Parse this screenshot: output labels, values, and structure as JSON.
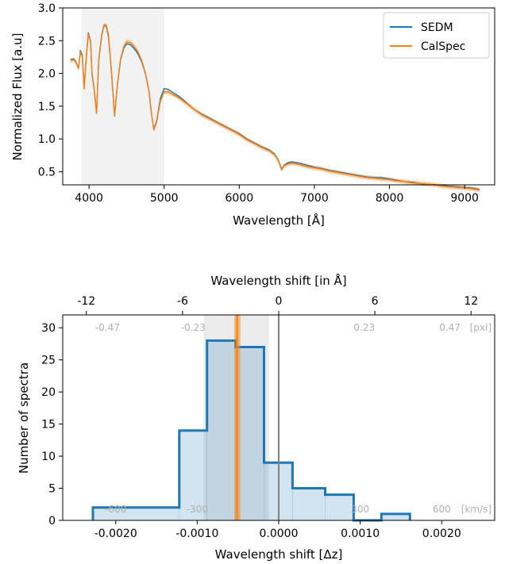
{
  "chart_data": [
    {
      "type": "line",
      "xlabel": "Wavelength [Å]",
      "ylabel": "Normalized Flux [a.u]",
      "xlim": [
        3650,
        9400
      ],
      "ylim": [
        0.3,
        3.0
      ],
      "xticks": [
        "4000",
        "5000",
        "6000",
        "7000",
        "8000",
        "9000"
      ],
      "yticks": [
        "0.5",
        "1.0",
        "1.5",
        "2.0",
        "2.5",
        "3.0"
      ],
      "grid": false,
      "legend_position": "top-right",
      "shaded_region": [
        3900,
        5000
      ],
      "series": [
        {
          "name": "SEDM",
          "color": "#1f77b4",
          "points": [
            [
              3750,
              2.21
            ],
            [
              3800,
              2.22
            ],
            [
              3830,
              2.17
            ],
            [
              3860,
              2.08
            ],
            [
              3885,
              2.35
            ],
            [
              3910,
              2.28
            ],
            [
              3935,
              1.78
            ],
            [
              3960,
              2.2
            ],
            [
              3990,
              2.62
            ],
            [
              4020,
              2.5
            ],
            [
              4040,
              2.0
            ],
            [
              4070,
              1.75
            ],
            [
              4100,
              1.4
            ],
            [
              4130,
              2.22
            ],
            [
              4170,
              2.6
            ],
            [
              4200,
              2.74
            ],
            [
              4230,
              2.72
            ],
            [
              4260,
              2.55
            ],
            [
              4300,
              2.0
            ],
            [
              4340,
              1.35
            ],
            [
              4380,
              1.85
            ],
            [
              4420,
              2.2
            ],
            [
              4460,
              2.38
            ],
            [
              4500,
              2.45
            ],
            [
              4550,
              2.44
            ],
            [
              4600,
              2.38
            ],
            [
              4650,
              2.3
            ],
            [
              4700,
              2.18
            ],
            [
              4750,
              2.0
            ],
            [
              4800,
              1.72
            ],
            [
              4830,
              1.4
            ],
            [
              4862,
              1.15
            ],
            [
              4900,
              1.28
            ],
            [
              4950,
              1.62
            ],
            [
              5000,
              1.77
            ],
            [
              5050,
              1.76
            ],
            [
              5100,
              1.72
            ],
            [
              5200,
              1.65
            ],
            [
              5300,
              1.55
            ],
            [
              5400,
              1.45
            ],
            [
              5500,
              1.38
            ],
            [
              5600,
              1.32
            ],
            [
              5700,
              1.26
            ],
            [
              5800,
              1.2
            ],
            [
              5900,
              1.14
            ],
            [
              6000,
              1.08
            ],
            [
              6100,
              1.0
            ],
            [
              6200,
              0.94
            ],
            [
              6300,
              0.88
            ],
            [
              6400,
              0.83
            ],
            [
              6470,
              0.77
            ],
            [
              6520,
              0.68
            ],
            [
              6563,
              0.54
            ],
            [
              6600,
              0.6
            ],
            [
              6650,
              0.64
            ],
            [
              6700,
              0.65
            ],
            [
              6800,
              0.63
            ],
            [
              6900,
              0.6
            ],
            [
              7000,
              0.57
            ],
            [
              7100,
              0.55
            ],
            [
              7200,
              0.52
            ],
            [
              7300,
              0.5
            ],
            [
              7400,
              0.48
            ],
            [
              7500,
              0.46
            ],
            [
              7600,
              0.44
            ],
            [
              7700,
              0.42
            ],
            [
              7800,
              0.41
            ],
            [
              7900,
              0.41
            ],
            [
              8000,
              0.39
            ],
            [
              8100,
              0.37
            ],
            [
              8200,
              0.35
            ],
            [
              8300,
              0.34
            ],
            [
              8400,
              0.32
            ],
            [
              8500,
              0.31
            ],
            [
              8600,
              0.3
            ],
            [
              8700,
              0.29
            ],
            [
              8800,
              0.28
            ],
            [
              8900,
              0.27
            ],
            [
              9000,
              0.26
            ],
            [
              9100,
              0.25
            ],
            [
              9200,
              0.23
            ]
          ]
        },
        {
          "name": "CalSpec",
          "color": "#ff7f0e",
          "points": [
            [
              3750,
              2.2
            ],
            [
              3800,
              2.21
            ],
            [
              3830,
              2.16
            ],
            [
              3860,
              2.07
            ],
            [
              3885,
              2.33
            ],
            [
              3910,
              2.26
            ],
            [
              3935,
              1.76
            ],
            [
              3960,
              2.18
            ],
            [
              3990,
              2.6
            ],
            [
              4020,
              2.49
            ],
            [
              4040,
              1.99
            ],
            [
              4070,
              1.74
            ],
            [
              4100,
              1.39
            ],
            [
              4130,
              2.2
            ],
            [
              4170,
              2.58
            ],
            [
              4200,
              2.73
            ],
            [
              4230,
              2.74
            ],
            [
              4260,
              2.58
            ],
            [
              4300,
              2.02
            ],
            [
              4340,
              1.36
            ],
            [
              4380,
              1.86
            ],
            [
              4420,
              2.22
            ],
            [
              4460,
              2.4
            ],
            [
              4500,
              2.48
            ],
            [
              4550,
              2.47
            ],
            [
              4600,
              2.41
            ],
            [
              4650,
              2.33
            ],
            [
              4700,
              2.2
            ],
            [
              4750,
              2.01
            ],
            [
              4800,
              1.72
            ],
            [
              4830,
              1.4
            ],
            [
              4862,
              1.14
            ],
            [
              4900,
              1.26
            ],
            [
              4950,
              1.58
            ],
            [
              5000,
              1.72
            ],
            [
              5050,
              1.72
            ],
            [
              5100,
              1.69
            ],
            [
              5200,
              1.63
            ],
            [
              5300,
              1.54
            ],
            [
              5400,
              1.45
            ],
            [
              5500,
              1.37
            ],
            [
              5600,
              1.31
            ],
            [
              5700,
              1.25
            ],
            [
              5800,
              1.19
            ],
            [
              5900,
              1.13
            ],
            [
              6000,
              1.07
            ],
            [
              6100,
              0.99
            ],
            [
              6200,
              0.93
            ],
            [
              6300,
              0.87
            ],
            [
              6400,
              0.82
            ],
            [
              6470,
              0.76
            ],
            [
              6520,
              0.67
            ],
            [
              6563,
              0.53
            ],
            [
              6600,
              0.59
            ],
            [
              6650,
              0.62
            ],
            [
              6700,
              0.63
            ],
            [
              6800,
              0.61
            ],
            [
              6900,
              0.58
            ],
            [
              7000,
              0.56
            ],
            [
              7100,
              0.54
            ],
            [
              7200,
              0.51
            ],
            [
              7300,
              0.49
            ],
            [
              7400,
              0.47
            ],
            [
              7500,
              0.45
            ],
            [
              7600,
              0.43
            ],
            [
              7700,
              0.41
            ],
            [
              7800,
              0.4
            ],
            [
              7900,
              0.39
            ],
            [
              8000,
              0.38
            ],
            [
              8100,
              0.36
            ],
            [
              8200,
              0.35
            ],
            [
              8300,
              0.33
            ],
            [
              8400,
              0.32
            ],
            [
              8500,
              0.31
            ],
            [
              8600,
              0.3
            ],
            [
              8700,
              0.28
            ],
            [
              8800,
              0.27
            ],
            [
              8900,
              0.26
            ],
            [
              9000,
              0.25
            ],
            [
              9100,
              0.24
            ],
            [
              9200,
              0.22
            ]
          ]
        }
      ]
    },
    {
      "type": "bar",
      "subtype": "histogram",
      "xlabel": "Wavelength shift [Δz]",
      "ylabel": "Number of spectra",
      "top_xlabel": "Wavelength shift [in Å]",
      "xlim": [
        -0.00265,
        0.00265
      ],
      "ylim": [
        0,
        32
      ],
      "xticks": [
        "-0.0020",
        "-0.0010",
        "0.0000",
        "0.0010",
        "0.0020"
      ],
      "yticks": [
        "0",
        "5",
        "10",
        "15",
        "20",
        "25",
        "30"
      ],
      "top_ticks": [
        {
          "label": "-12",
          "value": -0.00236
        },
        {
          "label": "-6",
          "value": -0.00118
        },
        {
          "label": "0",
          "value": 0.0
        },
        {
          "label": "6",
          "value": 0.00118
        },
        {
          "label": "12",
          "value": 0.00236
        }
      ],
      "pxl_labels": [
        {
          "label": "-0.47",
          "value": -0.0021
        },
        {
          "label": "-0.23",
          "value": -0.00105
        },
        {
          "label": "0.23",
          "value": 0.00105
        },
        {
          "label": "0.47",
          "value": 0.0021
        }
      ],
      "pxl_unit": "[pxl]",
      "kms_labels": [
        {
          "label": "-600",
          "value": -0.002
        },
        {
          "label": "-300",
          "value": -0.001
        },
        {
          "label": "300",
          "value": 0.001
        },
        {
          "label": "600",
          "value": 0.002
        }
      ],
      "kms_unit": "[km/s]",
      "bins": [
        {
          "x0": -0.00228,
          "x1": -0.00122,
          "count": 2
        },
        {
          "x0": -0.00122,
          "x1": -0.00088,
          "count": 14
        },
        {
          "x0": -0.00088,
          "x1": -0.00053,
          "count": 28
        },
        {
          "x0": -0.00053,
          "x1": -0.00018,
          "count": 27
        },
        {
          "x0": -0.00018,
          "x1": 0.00017,
          "count": 9
        },
        {
          "x0": 0.00017,
          "x1": 0.00057,
          "count": 5
        },
        {
          "x0": 0.00057,
          "x1": 0.00092,
          "count": 4
        },
        {
          "x0": 0.00092,
          "x1": 0.00126,
          "count": 0
        },
        {
          "x0": 0.00126,
          "x1": 0.00161,
          "count": 1
        }
      ],
      "shaded_band": [
        -0.00092,
        -0.00012
      ],
      "median_band": [
        -0.000545,
        -0.00047
      ],
      "median_value": -0.00051,
      "zero_line": 0.0,
      "hist_color": "#1f77b4",
      "median_color": "#ff7f0e"
    }
  ]
}
